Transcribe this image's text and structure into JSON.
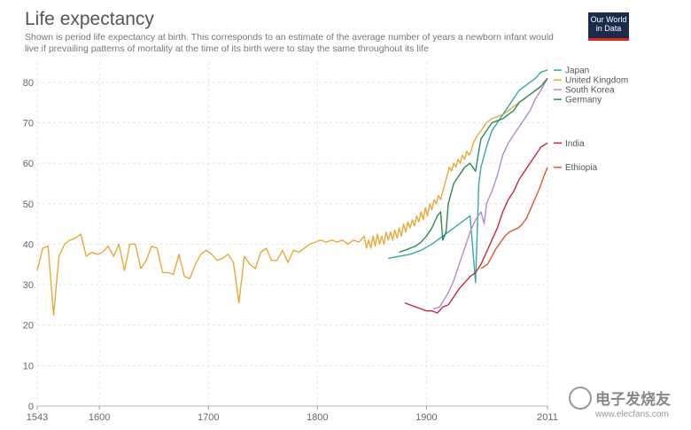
{
  "chart_data": {
    "type": "line",
    "title": "Life expectancy",
    "subtitle": "Shown is period life expectancy at birth. This corresponds to an estimate of the average number of years a newborn infant would live if prevailing patterns of mortality at the time of its birth were to stay the same throughout its life",
    "xlabel": "",
    "ylabel": "",
    "xlim": [
      1543,
      2011
    ],
    "ylim": [
      0,
      85
    ],
    "x_ticks": [
      1543,
      1600,
      1700,
      1800,
      1900,
      2011
    ],
    "y_ticks": [
      0,
      10,
      20,
      30,
      40,
      50,
      60,
      70,
      80
    ],
    "grid": true,
    "legend": "right-inline",
    "series": [
      {
        "name": "United Kingdom",
        "color": "#e8a93a",
        "points": [
          [
            1543,
            33.5
          ],
          [
            1548,
            39
          ],
          [
            1553,
            39.5
          ],
          [
            1558,
            22.5
          ],
          [
            1563,
            37
          ],
          [
            1568,
            40
          ],
          [
            1573,
            41
          ],
          [
            1578,
            41.5
          ],
          [
            1583,
            42.5
          ],
          [
            1588,
            37
          ],
          [
            1593,
            38
          ],
          [
            1598,
            37.5
          ],
          [
            1603,
            38
          ],
          [
            1608,
            39.5
          ],
          [
            1613,
            37
          ],
          [
            1618,
            40
          ],
          [
            1623,
            33.5
          ],
          [
            1628,
            40
          ],
          [
            1633,
            40
          ],
          [
            1638,
            34
          ],
          [
            1643,
            36
          ],
          [
            1648,
            39.5
          ],
          [
            1653,
            39
          ],
          [
            1658,
            33
          ],
          [
            1663,
            33
          ],
          [
            1668,
            32.5
          ],
          [
            1673,
            37.5
          ],
          [
            1678,
            32
          ],
          [
            1683,
            31.5
          ],
          [
            1688,
            35
          ],
          [
            1693,
            37.5
          ],
          [
            1698,
            38.5
          ],
          [
            1703,
            37.5
          ],
          [
            1708,
            36
          ],
          [
            1713,
            36.5
          ],
          [
            1718,
            37.5
          ],
          [
            1723,
            35.5
          ],
          [
            1728,
            25.5
          ],
          [
            1733,
            37
          ],
          [
            1738,
            35
          ],
          [
            1743,
            34
          ],
          [
            1748,
            38
          ],
          [
            1753,
            39
          ],
          [
            1758,
            36
          ],
          [
            1763,
            36
          ],
          [
            1768,
            38.5
          ],
          [
            1773,
            35.5
          ],
          [
            1778,
            38.5
          ],
          [
            1783,
            38
          ],
          [
            1788,
            39
          ],
          [
            1793,
            40
          ],
          [
            1798,
            40.5
          ],
          [
            1803,
            41
          ],
          [
            1808,
            40.5
          ],
          [
            1813,
            41
          ],
          [
            1818,
            40.5
          ],
          [
            1823,
            41
          ],
          [
            1828,
            40
          ],
          [
            1833,
            41
          ],
          [
            1838,
            40.5
          ],
          [
            1843,
            42
          ],
          [
            1845,
            39
          ],
          [
            1847,
            41
          ],
          [
            1849,
            39
          ],
          [
            1851,
            42
          ],
          [
            1853,
            39.5
          ],
          [
            1855,
            42.5
          ],
          [
            1857,
            40
          ],
          [
            1859,
            42
          ],
          [
            1861,
            40
          ],
          [
            1863,
            43
          ],
          [
            1865,
            41
          ],
          [
            1867,
            43
          ],
          [
            1869,
            41
          ],
          [
            1871,
            43.5
          ],
          [
            1873,
            41.5
          ],
          [
            1875,
            44
          ],
          [
            1877,
            42
          ],
          [
            1879,
            45
          ],
          [
            1881,
            43
          ],
          [
            1883,
            45.5
          ],
          [
            1885,
            44
          ],
          [
            1887,
            46
          ],
          [
            1889,
            44.5
          ],
          [
            1891,
            47
          ],
          [
            1893,
            45.5
          ],
          [
            1895,
            48
          ],
          [
            1897,
            46
          ],
          [
            1899,
            49
          ],
          [
            1901,
            47
          ],
          [
            1903,
            50
          ],
          [
            1905,
            48.5
          ],
          [
            1907,
            51
          ],
          [
            1909,
            50
          ],
          [
            1911,
            52
          ],
          [
            1913,
            51
          ],
          [
            1915,
            53
          ],
          [
            1917,
            55
          ],
          [
            1919,
            57
          ],
          [
            1921,
            59
          ],
          [
            1923,
            58
          ],
          [
            1925,
            60
          ],
          [
            1927,
            59
          ],
          [
            1929,
            61
          ],
          [
            1931,
            60
          ],
          [
            1933,
            62
          ],
          [
            1935,
            61
          ],
          [
            1937,
            63
          ],
          [
            1939,
            62
          ],
          [
            1941,
            63
          ],
          [
            1943,
            65
          ],
          [
            1945,
            66
          ],
          [
            1947,
            67
          ],
          [
            1950,
            68
          ],
          [
            1955,
            70
          ],
          [
            1960,
            71
          ],
          [
            1965,
            71.5
          ],
          [
            1970,
            72
          ],
          [
            1975,
            73
          ],
          [
            1980,
            74
          ],
          [
            1985,
            75
          ],
          [
            1990,
            76
          ],
          [
            1995,
            77
          ],
          [
            2000,
            78
          ],
          [
            2005,
            79
          ],
          [
            2011,
            81
          ]
        ]
      },
      {
        "name": "Japan",
        "color": "#3aa6a5",
        "points": [
          [
            1865,
            36.5
          ],
          [
            1875,
            37
          ],
          [
            1885,
            37.5
          ],
          [
            1895,
            38.5
          ],
          [
            1905,
            40
          ],
          [
            1915,
            42
          ],
          [
            1925,
            44
          ],
          [
            1935,
            46
          ],
          [
            1940,
            47
          ],
          [
            1945,
            30.5
          ],
          [
            1948,
            55
          ],
          [
            1950,
            59
          ],
          [
            1955,
            64
          ],
          [
            1960,
            68
          ],
          [
            1965,
            70
          ],
          [
            1970,
            72
          ],
          [
            1975,
            74
          ],
          [
            1980,
            76
          ],
          [
            1985,
            78
          ],
          [
            1990,
            79
          ],
          [
            1995,
            80
          ],
          [
            2000,
            81
          ],
          [
            2005,
            82.5
          ],
          [
            2011,
            83
          ]
        ]
      },
      {
        "name": "South Korea",
        "color": "#b28bd1",
        "points": [
          [
            1906,
            24
          ],
          [
            1912,
            24.5
          ],
          [
            1920,
            28
          ],
          [
            1925,
            31
          ],
          [
            1930,
            35
          ],
          [
            1935,
            39
          ],
          [
            1940,
            43
          ],
          [
            1945,
            46
          ],
          [
            1950,
            48
          ],
          [
            1953,
            45
          ],
          [
            1955,
            50
          ],
          [
            1960,
            53
          ],
          [
            1965,
            57
          ],
          [
            1970,
            62
          ],
          [
            1975,
            65
          ],
          [
            1980,
            67
          ],
          [
            1985,
            69
          ],
          [
            1990,
            71
          ],
          [
            1995,
            73
          ],
          [
            2000,
            76
          ],
          [
            2005,
            78
          ],
          [
            2011,
            81
          ]
        ]
      },
      {
        "name": "Germany",
        "color": "#2b8c56",
        "points": [
          [
            1875,
            38
          ],
          [
            1880,
            38.5
          ],
          [
            1885,
            39
          ],
          [
            1890,
            39.5
          ],
          [
            1895,
            40.5
          ],
          [
            1900,
            42
          ],
          [
            1905,
            44
          ],
          [
            1910,
            47
          ],
          [
            1913,
            48
          ],
          [
            1915,
            41
          ],
          [
            1918,
            43
          ],
          [
            1920,
            50
          ],
          [
            1925,
            55
          ],
          [
            1930,
            57
          ],
          [
            1935,
            59
          ],
          [
            1940,
            60
          ],
          [
            1945,
            58
          ],
          [
            1948,
            63
          ],
          [
            1950,
            66
          ],
          [
            1955,
            68
          ],
          [
            1960,
            70
          ],
          [
            1965,
            70.5
          ],
          [
            1970,
            71
          ],
          [
            1975,
            72
          ],
          [
            1980,
            73
          ],
          [
            1985,
            75
          ],
          [
            1990,
            76
          ],
          [
            1995,
            77
          ],
          [
            2000,
            78
          ],
          [
            2005,
            79
          ],
          [
            2011,
            81
          ]
        ]
      },
      {
        "name": "India",
        "color": "#c9283e",
        "points": [
          [
            1880,
            25.5
          ],
          [
            1885,
            25
          ],
          [
            1890,
            24.5
          ],
          [
            1895,
            24
          ],
          [
            1900,
            23.5
          ],
          [
            1905,
            23.5
          ],
          [
            1910,
            23
          ],
          [
            1915,
            24.5
          ],
          [
            1920,
            25
          ],
          [
            1925,
            27
          ],
          [
            1930,
            29
          ],
          [
            1935,
            30.5
          ],
          [
            1940,
            32
          ],
          [
            1945,
            33
          ],
          [
            1950,
            35
          ],
          [
            1955,
            38
          ],
          [
            1960,
            41
          ],
          [
            1965,
            44
          ],
          [
            1970,
            48
          ],
          [
            1975,
            51
          ],
          [
            1980,
            53
          ],
          [
            1985,
            56
          ],
          [
            1990,
            58
          ],
          [
            1995,
            60
          ],
          [
            2000,
            62
          ],
          [
            2005,
            64
          ],
          [
            2011,
            65
          ]
        ]
      },
      {
        "name": "Ethiopia",
        "color": "#e0562a",
        "points": [
          [
            1950,
            34
          ],
          [
            1953,
            34.5
          ],
          [
            1956,
            35
          ],
          [
            1960,
            37
          ],
          [
            1964,
            39
          ],
          [
            1968,
            40.5
          ],
          [
            1972,
            42
          ],
          [
            1976,
            43
          ],
          [
            1980,
            43.5
          ],
          [
            1984,
            44
          ],
          [
            1988,
            45
          ],
          [
            1992,
            46.5
          ],
          [
            1996,
            49
          ],
          [
            2000,
            51.5
          ],
          [
            2004,
            54
          ],
          [
            2008,
            57
          ],
          [
            2011,
            59
          ]
        ]
      }
    ]
  },
  "logo": {
    "line1": "Our World",
    "line2": "in Data"
  },
  "watermark": {
    "text": "电子发烧友",
    "url": "www.elecfans.com"
  }
}
